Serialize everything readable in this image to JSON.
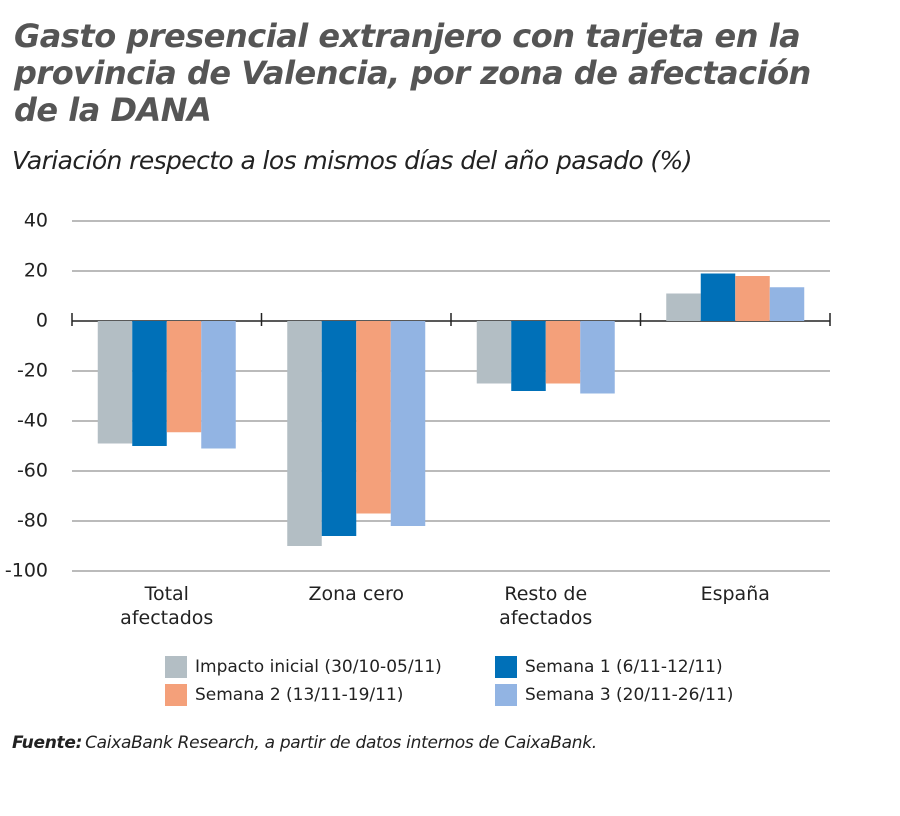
{
  "chart_data": {
    "type": "bar",
    "title": "Gasto presencial extranjero con tarjeta en la provincia de Valencia, por zona de afectación de la DANA",
    "subtitle": "Variación respecto a los mismos días del año pasado (%)",
    "categories": [
      "Total afectados",
      "Zona cero",
      "Resto de afectados",
      "España"
    ],
    "series": [
      {
        "name": "Impacto inicial (30/10-05/11)",
        "color": "#b3bec4",
        "values": [
          -49,
          -90,
          -25,
          11
        ]
      },
      {
        "name": "Semana 1 (6/11-12/11)",
        "color": "#0070b8",
        "values": [
          -50,
          -86,
          -28,
          19
        ]
      },
      {
        "name": "Semana 2 (13/11-19/11)",
        "color": "#f4a07a",
        "values": [
          -44.5,
          -77,
          -25,
          18
        ]
      },
      {
        "name": "Semana 3 (20/11-26/11)",
        "color": "#92b4e3",
        "values": [
          -51,
          -82,
          -29,
          13.5
        ]
      }
    ],
    "ylim": [
      -100,
      40
    ],
    "yticks": [
      -100,
      -80,
      -60,
      -40,
      -20,
      0,
      20,
      40
    ],
    "grid": true,
    "legend": "bottom",
    "source_label": "Fuente:",
    "source": "CaixaBank Research, a partir de datos internos de CaixaBank."
  }
}
